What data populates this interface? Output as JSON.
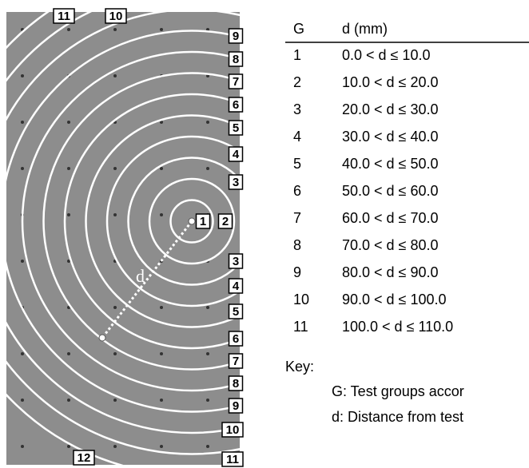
{
  "figure": {
    "ring_labels": [
      "11",
      "10",
      "9",
      "8",
      "7",
      "6",
      "5",
      "4",
      "3",
      "1",
      "2",
      "3",
      "4",
      "5",
      "6",
      "7",
      "8",
      "9",
      "10",
      "11",
      "12"
    ],
    "distance_label": "d"
  },
  "table": {
    "header": [
      "G",
      "d (mm)"
    ],
    "rows": [
      [
        "1",
        "0.0 < d ≤ 10.0"
      ],
      [
        "2",
        "10.0 < d ≤ 20.0"
      ],
      [
        "3",
        "20.0 < d ≤ 30.0"
      ],
      [
        "4",
        "30.0 < d ≤ 40.0"
      ],
      [
        "5",
        "40.0 < d ≤ 50.0"
      ],
      [
        "6",
        "50.0 < d ≤ 60.0"
      ],
      [
        "7",
        "60.0 < d ≤ 70.0"
      ],
      [
        "8",
        "70.0 < d ≤ 80.0"
      ],
      [
        "9",
        "80.0 < d ≤ 90.0"
      ],
      [
        "10",
        "90.0 < d ≤ 100.0"
      ],
      [
        "11",
        "100.0 < d ≤ 110.0"
      ]
    ]
  },
  "key": {
    "title": "Key:",
    "items": [
      "G: Test groups accor",
      "d: Distance from test"
    ]
  }
}
